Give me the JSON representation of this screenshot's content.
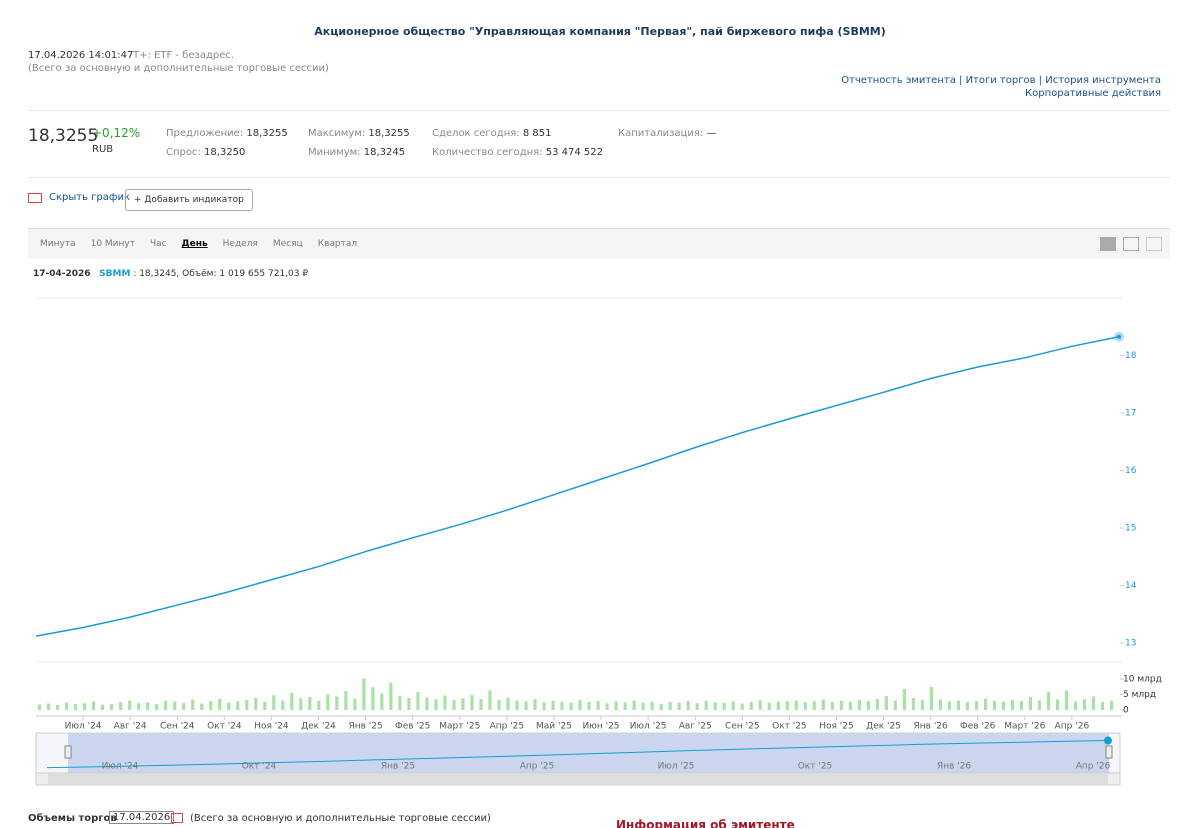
{
  "header": {
    "title": "Акционерное общество \"Управляющая компания \"Первая\", пай биржевого пифа (SBMM)",
    "datetime": "17.04.2026 14:01:47",
    "status": "T+: ETF - безадрес.",
    "session_note": "(Всего за основную и дополнительные торговые сессии)",
    "links": [
      "Отчетность эмитента",
      "Итоги торгов",
      "История инструмента",
      "Корпоративные действия"
    ]
  },
  "quote": {
    "price": "18,3255",
    "change": "+0,12%",
    "currency": "RUB",
    "fields": [
      {
        "label": "Предложение:",
        "value": "18,3255"
      },
      {
        "label": "Спрос:",
        "value": "18,3250"
      },
      {
        "label": "Максимум:",
        "value": "18,3255"
      },
      {
        "label": "Минимум:",
        "value": "18,3245"
      },
      {
        "label": "Сделок сегодня:",
        "value": "8 851"
      },
      {
        "label": "Количество сегодня:",
        "value": "53 474 522"
      },
      {
        "label": "Капитализация:",
        "value": "—"
      }
    ]
  },
  "controls": {
    "hide_chart": "Скрыть график",
    "add_indicator": "+ Добавить индикатор"
  },
  "tabs": {
    "items": [
      "Минута",
      "10 Минут",
      "Час",
      "День",
      "Неделя",
      "Месяц",
      "Квартал"
    ],
    "active": "День"
  },
  "info_line": {
    "date": "17-04-2026",
    "ticker": "SBMM",
    "text": ": 18,3245, Объём: 1 019 655 721,03 ₽"
  },
  "chart_data": [
    {
      "type": "line",
      "color": "#1a9bd1",
      "grid": false,
      "categories": [
        null,
        "Июл '24",
        "Авг '24",
        "Сен '24",
        "Окт '24",
        "Ноя '24",
        "Дек '24",
        "Янв '25",
        "Фев '25",
        "Март '25",
        "Апр '25",
        "Май '25",
        "Июн '25",
        "Июл '25",
        "Авг '25",
        "Сен '25",
        "Окт '25",
        "Ноя '25",
        "Дек '25",
        "Янв '26",
        "Фев '26",
        "Март '26",
        "Апр '26",
        null
      ],
      "values": [
        13.12,
        13.27,
        13.45,
        13.66,
        13.87,
        14.1,
        14.33,
        14.59,
        14.83,
        15.06,
        15.31,
        15.58,
        15.85,
        16.12,
        16.4,
        16.66,
        16.9,
        17.13,
        17.36,
        17.6,
        17.8,
        17.96,
        18.16,
        18.3255
      ],
      "ylim": [
        12.67,
        19.0
      ],
      "yticks": [
        13,
        14,
        15,
        16,
        17,
        18
      ]
    },
    {
      "type": "bar",
      "color": "#a6e3a1",
      "values": [
        1.8,
        2.1,
        1.6,
        2.4,
        1.9,
        2.2,
        2.8,
        1.7,
        2.0,
        2.6,
        3.1,
        2.2,
        2.5,
        1.9,
        3.0,
        2.7,
        2.3,
        3.4,
        2.1,
        2.9,
        3.6,
        2.4,
        2.8,
        3.2,
        3.9,
        2.6,
        4.8,
        3.1,
        5.6,
        3.8,
        4.2,
        3.0,
        5.1,
        4.4,
        6.2,
        3.7,
        10.2,
        7.4,
        5.3,
        8.9,
        4.6,
        3.9,
        5.8,
        4.1,
        3.5,
        4.7,
        3.2,
        3.8,
        4.9,
        3.6,
        6.4,
        3.3,
        4.0,
        3.1,
        2.8,
        3.6,
        2.5,
        3.0,
        2.7,
        2.4,
        3.3,
        2.6,
        2.9,
        2.2,
        2.8,
        2.5,
        3.1,
        2.3,
        2.7,
        2.0,
        2.6,
        2.4,
        2.9,
        2.2,
        3.0,
        2.5,
        2.3,
        2.8,
        2.1,
        2.6,
        3.2,
        2.4,
        2.7,
        2.9,
        3.1,
        2.5,
        2.8,
        3.4,
        2.6,
        3.0,
        2.7,
        3.3,
        2.9,
        3.6,
        4.5,
        3.1,
        6.8,
        3.9,
        3.2,
        7.5,
        3.4,
        2.8,
        3.1,
        2.6,
        2.9,
        3.7,
        3.0,
        2.7,
        3.3,
        2.9,
        4.2,
        3.1,
        5.9,
        3.4,
        6.3,
        2.8,
        3.5,
        4.4,
        2.6,
        3.0
      ],
      "ylim": [
        0,
        12
      ],
      "yticks": [
        0,
        {
          "value": 5,
          "label": "5 млрд"
        },
        {
          "value": 10,
          "label": "10 млрд"
        }
      ]
    }
  ],
  "navigator": {
    "labels": [
      "Июл '24",
      "Окт '24",
      "Янв '25",
      "Апр '25",
      "Июл '25",
      "Окт '25",
      "Янв '26",
      "Апр '26"
    ]
  },
  "footer": {
    "volumes_label": "Объемы торгов",
    "date": "17.04.2026",
    "note": "(Всего за основную и дополнительные торговые сессии)",
    "issuer_info": "Информация об эмитенте"
  }
}
